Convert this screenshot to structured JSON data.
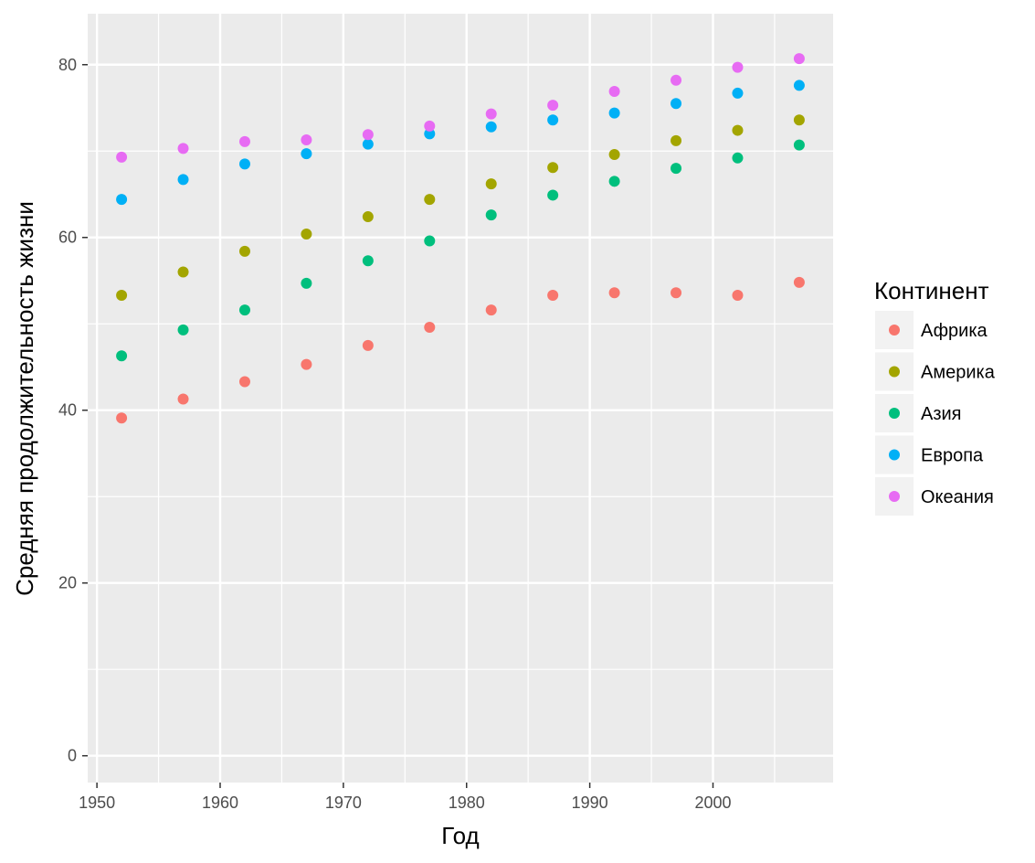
{
  "chart_data": {
    "type": "scatter",
    "title": "",
    "xlabel": "Год",
    "ylabel": "Средняя продолжительность жизни",
    "xlim": [
      1949.25,
      2009.75
    ],
    "ylim": [
      -3.1,
      85.9
    ],
    "x_ticks": [
      1950,
      1960,
      1970,
      1980,
      1990,
      2000
    ],
    "x_tick_labels": [
      "1950",
      "1960",
      "1970",
      "1980",
      "1990",
      "2000"
    ],
    "y_ticks": [
      0,
      20,
      40,
      60,
      80
    ],
    "y_tick_labels": [
      "0",
      "20",
      "40",
      "60",
      "80"
    ],
    "grid": true,
    "legend_position": "right",
    "legend_title": "Континент",
    "x": [
      1952,
      1957,
      1962,
      1967,
      1972,
      1977,
      1982,
      1987,
      1992,
      1997,
      2002,
      2007
    ],
    "series": [
      {
        "name": "Африка",
        "color": "#F8766D",
        "values": [
          39.1,
          41.3,
          43.3,
          45.3,
          47.5,
          49.6,
          51.6,
          53.3,
          53.6,
          53.6,
          53.3,
          54.8
        ]
      },
      {
        "name": "Америка",
        "color": "#A3A500",
        "values": [
          53.3,
          56.0,
          58.4,
          60.4,
          62.4,
          64.4,
          66.2,
          68.1,
          69.6,
          71.2,
          72.4,
          73.6
        ]
      },
      {
        "name": "Азия",
        "color": "#00BF7D",
        "values": [
          46.3,
          49.3,
          51.6,
          54.7,
          57.3,
          59.6,
          62.6,
          64.9,
          66.5,
          68.0,
          69.2,
          70.7
        ]
      },
      {
        "name": "Европа",
        "color": "#00B0F6",
        "values": [
          64.4,
          66.7,
          68.5,
          69.7,
          70.8,
          72.0,
          72.8,
          73.6,
          74.4,
          75.5,
          76.7,
          77.6
        ]
      },
      {
        "name": "Океания",
        "color": "#E76BF3",
        "values": [
          69.3,
          70.3,
          71.1,
          71.3,
          71.9,
          72.9,
          74.3,
          75.3,
          76.9,
          78.2,
          79.7,
          80.7
        ]
      }
    ]
  }
}
